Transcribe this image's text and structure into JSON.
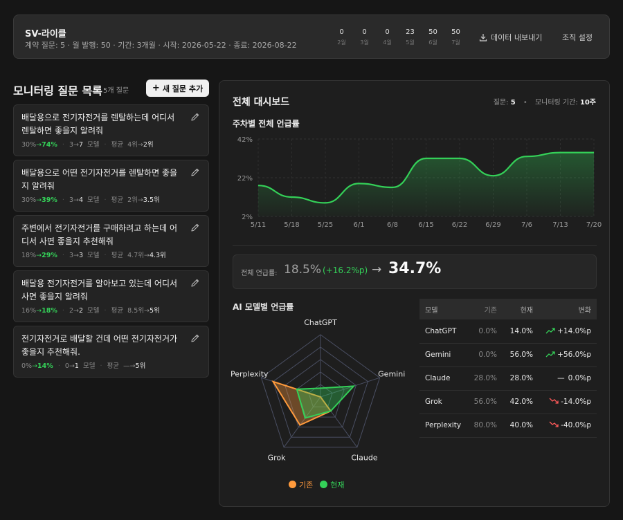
{
  "header": {
    "title": "SV-라이클",
    "meta": "계약 질문: 5 · 월 발행: 50 · 기간: 3개월 · 시작: 2026-05-22 · 종료: 2026-08-22",
    "stats": [
      {
        "value": "0",
        "label": "2월"
      },
      {
        "value": "0",
        "label": "3월"
      },
      {
        "value": "0",
        "label": "4월"
      },
      {
        "value": "23",
        "label": "5월"
      },
      {
        "value": "50",
        "label": "6월"
      },
      {
        "value": "50",
        "label": "7월"
      }
    ],
    "export_label": "데이터 내보내기",
    "org_label": "조직 설정",
    "icon_export": "download-icon"
  },
  "questions": {
    "title": "모니터링 질문 목록",
    "count": "5개 질문",
    "add_label": "새 질문 추가",
    "items": [
      {
        "text": "배달용으로 전기자전거를 렌탈하는데 어디서 렌탈하면 좋을지 알려줘",
        "rate_from": "30%",
        "rate_to": "74%",
        "model_from": "3",
        "model_to": "7",
        "model_unit": "모델",
        "avg_label": "평균",
        "avg_from": "4위",
        "avg_to": "2위"
      },
      {
        "text": "배달용으로 어떤 전기자전거를 렌탈하면 좋을지 알려줘",
        "rate_from": "30%",
        "rate_to": "39%",
        "model_from": "3",
        "model_to": "4",
        "model_unit": "모델",
        "avg_label": "평균",
        "avg_from": "2위",
        "avg_to": "3.5위"
      },
      {
        "text": "주변에서 전기자전거를 구매하려고 하는데 어디서 사면 좋을지 추천해줘",
        "rate_from": "18%",
        "rate_to": "29%",
        "model_from": "3",
        "model_to": "3",
        "model_unit": "모델",
        "avg_label": "평균",
        "avg_from": "4.7위",
        "avg_to": "4.3위"
      },
      {
        "text": "배달용 전기자전거를 알아보고 있는데 어디서 사면 좋을지 알려줘",
        "rate_from": "16%",
        "rate_to": "18%",
        "model_from": "2",
        "model_to": "2",
        "model_unit": "모델",
        "avg_label": "평균",
        "avg_from": "8.5위",
        "avg_to": "5위"
      },
      {
        "text": "전기자전거로 배달할 건데 어떤 전기자전거가 좋을지 추천해줘.",
        "rate_from": "0%",
        "rate_to": "14%",
        "model_from": "0",
        "model_to": "1",
        "model_unit": "모델",
        "avg_label": "평균",
        "avg_from": "—",
        "avg_to": "5위"
      }
    ]
  },
  "dashboard": {
    "title": "전체 대시보드",
    "questions_label": "질문:",
    "questions_value": "5",
    "period_label": "모니터링 기간:",
    "period_value": "10주",
    "weekly_title": "주차별 전체 언급률",
    "overall_label": "전체 언급률:",
    "overall_before": "18.5%",
    "overall_delta": "(+16.2%p)",
    "overall_arrow": "→",
    "overall_after": "34.7%",
    "model_title": "AI 모델별 언급률",
    "legend_before": "기존",
    "legend_after": "현재",
    "table_headers": {
      "model": "모델",
      "before": "기존",
      "current": "현재",
      "change": "변화"
    },
    "table_rows": [
      {
        "model": "ChatGPT",
        "before": "0.0%",
        "current": "14.0%",
        "change": "+14.0%p",
        "trend": "up"
      },
      {
        "model": "Gemini",
        "before": "0.0%",
        "current": "56.0%",
        "change": "+56.0%p",
        "trend": "up"
      },
      {
        "model": "Claude",
        "before": "28.0%",
        "current": "28.0%",
        "change": "0.0%p",
        "trend": "flat"
      },
      {
        "model": "Grok",
        "before": "56.0%",
        "current": "42.0%",
        "change": "-14.0%p",
        "trend": "down"
      },
      {
        "model": "Perplexity",
        "before": "80.0%",
        "current": "40.0%",
        "change": "-40.0%p",
        "trend": "down"
      }
    ]
  },
  "chart_data": [
    {
      "type": "area",
      "title": "주차별 전체 언급률",
      "x": [
        "5/11",
        "5/18",
        "5/25",
        "6/1",
        "6/8",
        "6/15",
        "6/22",
        "6/29",
        "7/6",
        "7/13",
        "7/20"
      ],
      "values": [
        18,
        12,
        9,
        19,
        17,
        32,
        32,
        23,
        33,
        35,
        35
      ],
      "y_ticks": [
        "42%",
        "22%",
        "2%"
      ],
      "ylim": [
        2,
        42
      ],
      "grid": true,
      "colors": {
        "line": "#34d058"
      }
    },
    {
      "type": "radar",
      "title": "AI 모델별 언급률",
      "axes": [
        "ChatGPT",
        "Gemini",
        "Claude",
        "Grok",
        "Perplexity"
      ],
      "series": [
        {
          "name": "기존",
          "values": [
            0,
            0,
            28,
            56,
            80
          ],
          "color": "#ff9a3c"
        },
        {
          "name": "현재",
          "values": [
            14,
            56,
            28,
            42,
            40
          ],
          "color": "#34d058"
        }
      ],
      "rmax": 100
    }
  ]
}
